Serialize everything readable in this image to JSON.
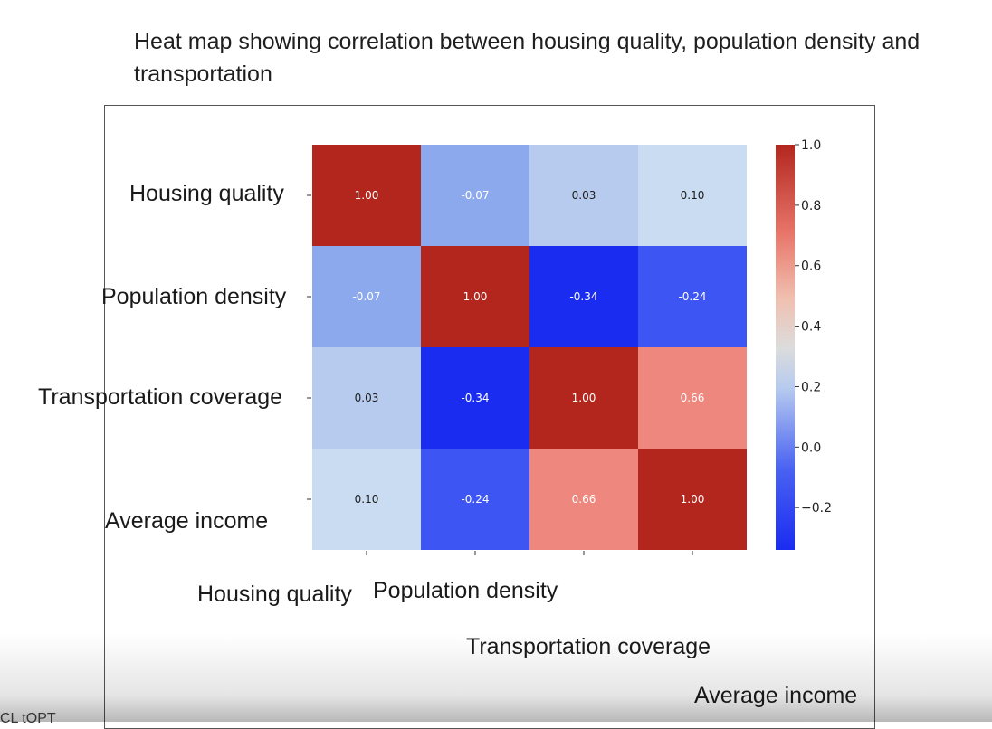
{
  "page": {
    "title": "Heat map showing correlation between housing quality, population density and transportation",
    "footer_cut_text": "CL  tOPT"
  },
  "colors": {
    "low": "#1a2cf0",
    "mid": "#dcdcdc",
    "high": "#b3261e"
  },
  "chart_data": {
    "type": "heatmap",
    "title": "",
    "row_labels": [
      "Housing quality",
      "Population density",
      "Transportation coverage",
      "Average income"
    ],
    "col_labels": [
      "Housing quality",
      "Population density",
      "Transportation coverage",
      "Average income"
    ],
    "values": [
      [
        1.0,
        -0.07,
        0.03,
        0.1
      ],
      [
        -0.07,
        1.0,
        -0.34,
        -0.24
      ],
      [
        0.03,
        -0.34,
        1.0,
        0.66
      ],
      [
        0.1,
        -0.24,
        0.66,
        1.0
      ]
    ],
    "value_labels": [
      [
        "1.00",
        "-0.07",
        "0.03",
        "0.10"
      ],
      [
        "-0.07",
        "1.00",
        "-0.34",
        "-0.24"
      ],
      [
        "0.03",
        "-0.34",
        "1.00",
        "0.66"
      ],
      [
        "0.10",
        "-0.24",
        "0.66",
        "1.00"
      ]
    ],
    "colorbar": {
      "range": [
        -0.34,
        1.0
      ],
      "ticks": [
        1.0,
        0.8,
        0.6,
        0.4,
        0.2,
        0.0,
        -0.2
      ],
      "tick_labels": [
        "1.0",
        "0.8",
        "0.6",
        "0.4",
        "0.2",
        "0.0",
        "−0.2"
      ]
    },
    "colormap": "coolwarm"
  }
}
